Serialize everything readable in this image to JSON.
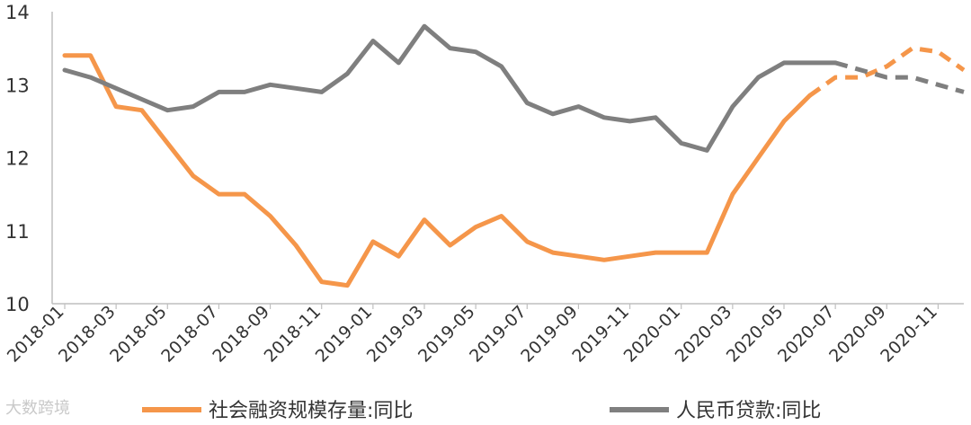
{
  "watermark": {
    "text": "大数跨境"
  },
  "chart_data": {
    "type": "line",
    "x": [
      "2018-01",
      "2018-02",
      "2018-03",
      "2018-04",
      "2018-05",
      "2018-06",
      "2018-07",
      "2018-08",
      "2018-09",
      "2018-10",
      "2018-11",
      "2018-12",
      "2019-01",
      "2019-02",
      "2019-03",
      "2019-04",
      "2019-05",
      "2019-06",
      "2019-07",
      "2019-08",
      "2019-09",
      "2019-10",
      "2019-11",
      "2019-12",
      "2020-01",
      "2020-02",
      "2020-03",
      "2020-04",
      "2020-05",
      "2020-06",
      "2020-07",
      "2020-08",
      "2020-09",
      "2020-10",
      "2020-11",
      "2020-12"
    ],
    "xticks": [
      "2018-01",
      "2018-03",
      "2018-05",
      "2018-07",
      "2018-09",
      "2018-11",
      "2019-01",
      "2019-03",
      "2019-05",
      "2019-07",
      "2019-09",
      "2019-11",
      "2020-01",
      "2020-03",
      "2020-05",
      "2020-07",
      "2020-09",
      "2020-11"
    ],
    "yticks": [
      10,
      11,
      12,
      13,
      14
    ],
    "ylim": [
      10,
      14
    ],
    "grid": false,
    "legend_position": "bottom",
    "series": [
      {
        "name": "社会融资规模存量:同比",
        "color": "#F5964A",
        "values": [
          13.4,
          13.4,
          12.7,
          12.65,
          12.2,
          11.75,
          11.5,
          11.5,
          11.2,
          10.8,
          10.3,
          10.25,
          10.85,
          10.65,
          11.15,
          10.8,
          11.05,
          11.2,
          10.85,
          10.7,
          10.65,
          10.6,
          10.65,
          10.7,
          10.7,
          10.7,
          11.5,
          12.0,
          12.5,
          12.85,
          13.1,
          13.1,
          13.25,
          13.5,
          13.45,
          13.2
        ],
        "solid_through": "2020-06"
      },
      {
        "name": "人民币贷款:同比",
        "color": "#7F7F7F",
        "values": [
          13.2,
          13.1,
          12.95,
          12.8,
          12.65,
          12.7,
          12.9,
          12.9,
          13.0,
          12.95,
          12.9,
          13.15,
          13.6,
          13.3,
          13.8,
          13.5,
          13.45,
          13.25,
          12.75,
          12.6,
          12.7,
          12.55,
          12.5,
          12.55,
          12.2,
          12.1,
          12.7,
          13.1,
          13.3,
          13.3,
          13.3,
          13.2,
          13.1,
          13.1,
          13.0,
          12.9
        ],
        "solid_through": "2020-07"
      }
    ]
  }
}
